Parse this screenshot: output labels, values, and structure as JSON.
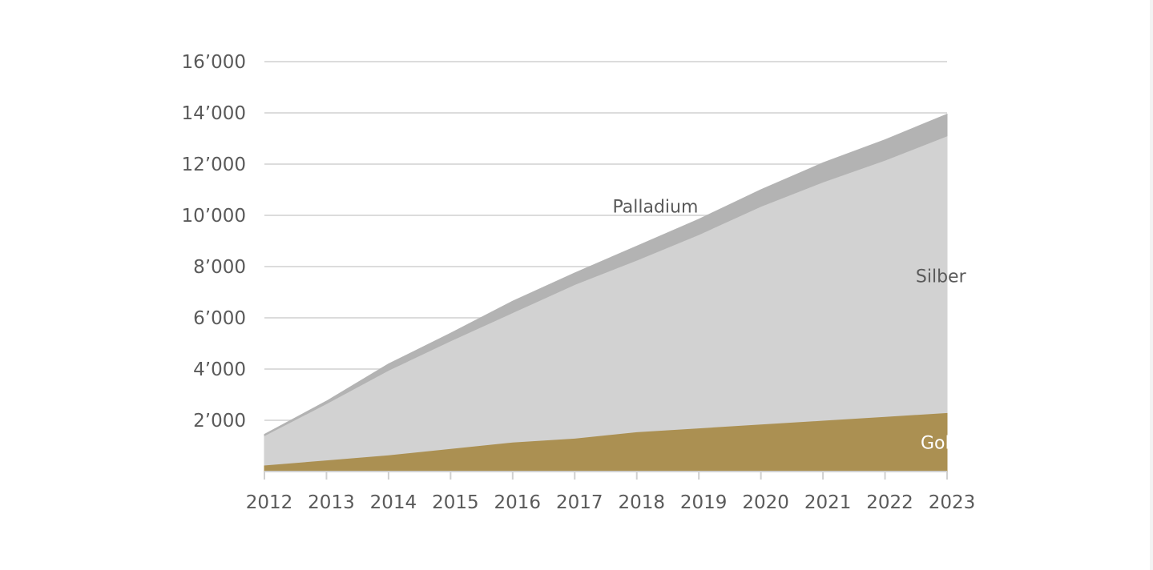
{
  "chart_data": {
    "type": "area",
    "stacked": true,
    "title": "",
    "xlabel": "",
    "ylabel": "",
    "x": [
      2012,
      2013,
      2014,
      2015,
      2016,
      2017,
      2018,
      2019,
      2020,
      2021,
      2022,
      2023
    ],
    "x_tick_labels": [
      "2012",
      "2013",
      "2014",
      "2015",
      "2016",
      "2017",
      "2018",
      "2019",
      "2020",
      "2021",
      "2022",
      "2023"
    ],
    "ylim": [
      0,
      16000
    ],
    "y_ticks": [
      2000,
      4000,
      6000,
      8000,
      10000,
      12000,
      14000,
      16000
    ],
    "y_tick_labels": [
      "2’000",
      "4’000",
      "6’000",
      "8’000",
      "10’000",
      "12’000",
      "14’000",
      "16’000"
    ],
    "grid": true,
    "legend": "inline labels",
    "series": [
      {
        "name": "Gold",
        "color": "#ab9052",
        "label_color": "#ffffff",
        "values": [
          250,
          450,
          650,
          900,
          1150,
          1300,
          1550,
          1700,
          1850,
          2000,
          2150,
          2300
        ]
      },
      {
        "name": "Silber",
        "color": "#d2d2d2",
        "label_color": "#5a5a5a",
        "values": [
          1150,
          2200,
          3300,
          4200,
          5050,
          6000,
          6700,
          7550,
          8500,
          9300,
          10000,
          10800
        ]
      },
      {
        "name": "Palladium",
        "color": "#b3b3b3",
        "label_color": "#5a5a5a",
        "values": [
          50,
          100,
          250,
          300,
          450,
          450,
          550,
          600,
          650,
          750,
          800,
          850
        ]
      }
    ]
  }
}
